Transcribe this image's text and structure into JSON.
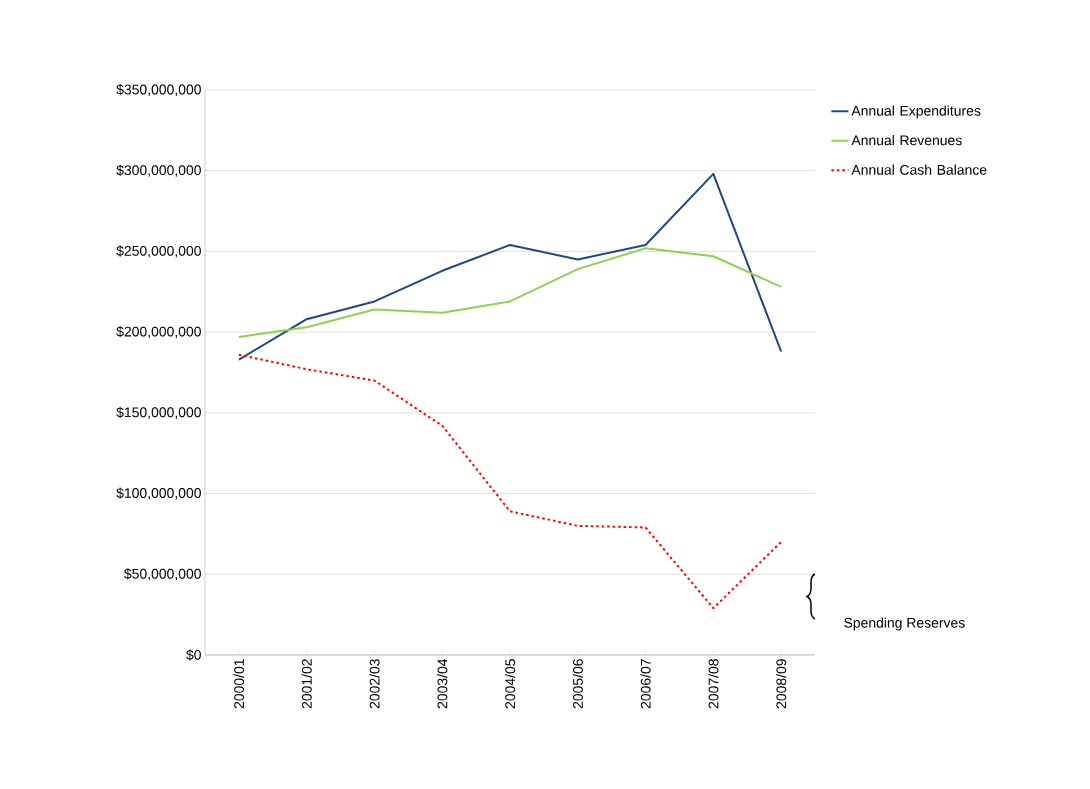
{
  "chart_data": {
    "type": "line",
    "categories": [
      "2000/01",
      "2001/02",
      "2002/03",
      "2003/04",
      "2004/05",
      "2005/06",
      "2006/07",
      "2007/08",
      "2008/09"
    ],
    "series": [
      {
        "name": "Annual Expenditures",
        "color": "#1f497d",
        "line_style": "solid",
        "values": [
          183000000,
          208000000,
          219000000,
          238000000,
          254000000,
          245000000,
          254000000,
          298000000,
          188000000
        ]
      },
      {
        "name": "Annual Revenues",
        "color": "#92d050",
        "line_style": "solid",
        "values": [
          197000000,
          203000000,
          214000000,
          212000000,
          219000000,
          239000000,
          252000000,
          247000000,
          228000000
        ]
      },
      {
        "name": "Annual Cash Balance",
        "color": "#ff0000",
        "line_style": "dotted",
        "values": [
          186000000,
          177000000,
          170000000,
          142000000,
          89000000,
          80000000,
          79000000,
          29000000,
          70000000
        ]
      }
    ],
    "ylim": [
      0,
      350000000
    ],
    "yticks": [
      {
        "value": 0,
        "label": "$0"
      },
      {
        "value": 50000000,
        "label": "$50,000,000"
      },
      {
        "value": 100000000,
        "label": "$100,000,000"
      },
      {
        "value": 150000000,
        "label": "$150,000,000"
      },
      {
        "value": 200000000,
        "label": "$200,000,000"
      },
      {
        "value": 250000000,
        "label": "$250,000,000"
      },
      {
        "value": 300000000,
        "label": "$300,000,000"
      },
      {
        "value": 350000000,
        "label": "$350,000,000"
      }
    ],
    "grid": "y",
    "legend": "right",
    "marker": "none",
    "annotations": [
      "Spending Reserves"
    ]
  }
}
